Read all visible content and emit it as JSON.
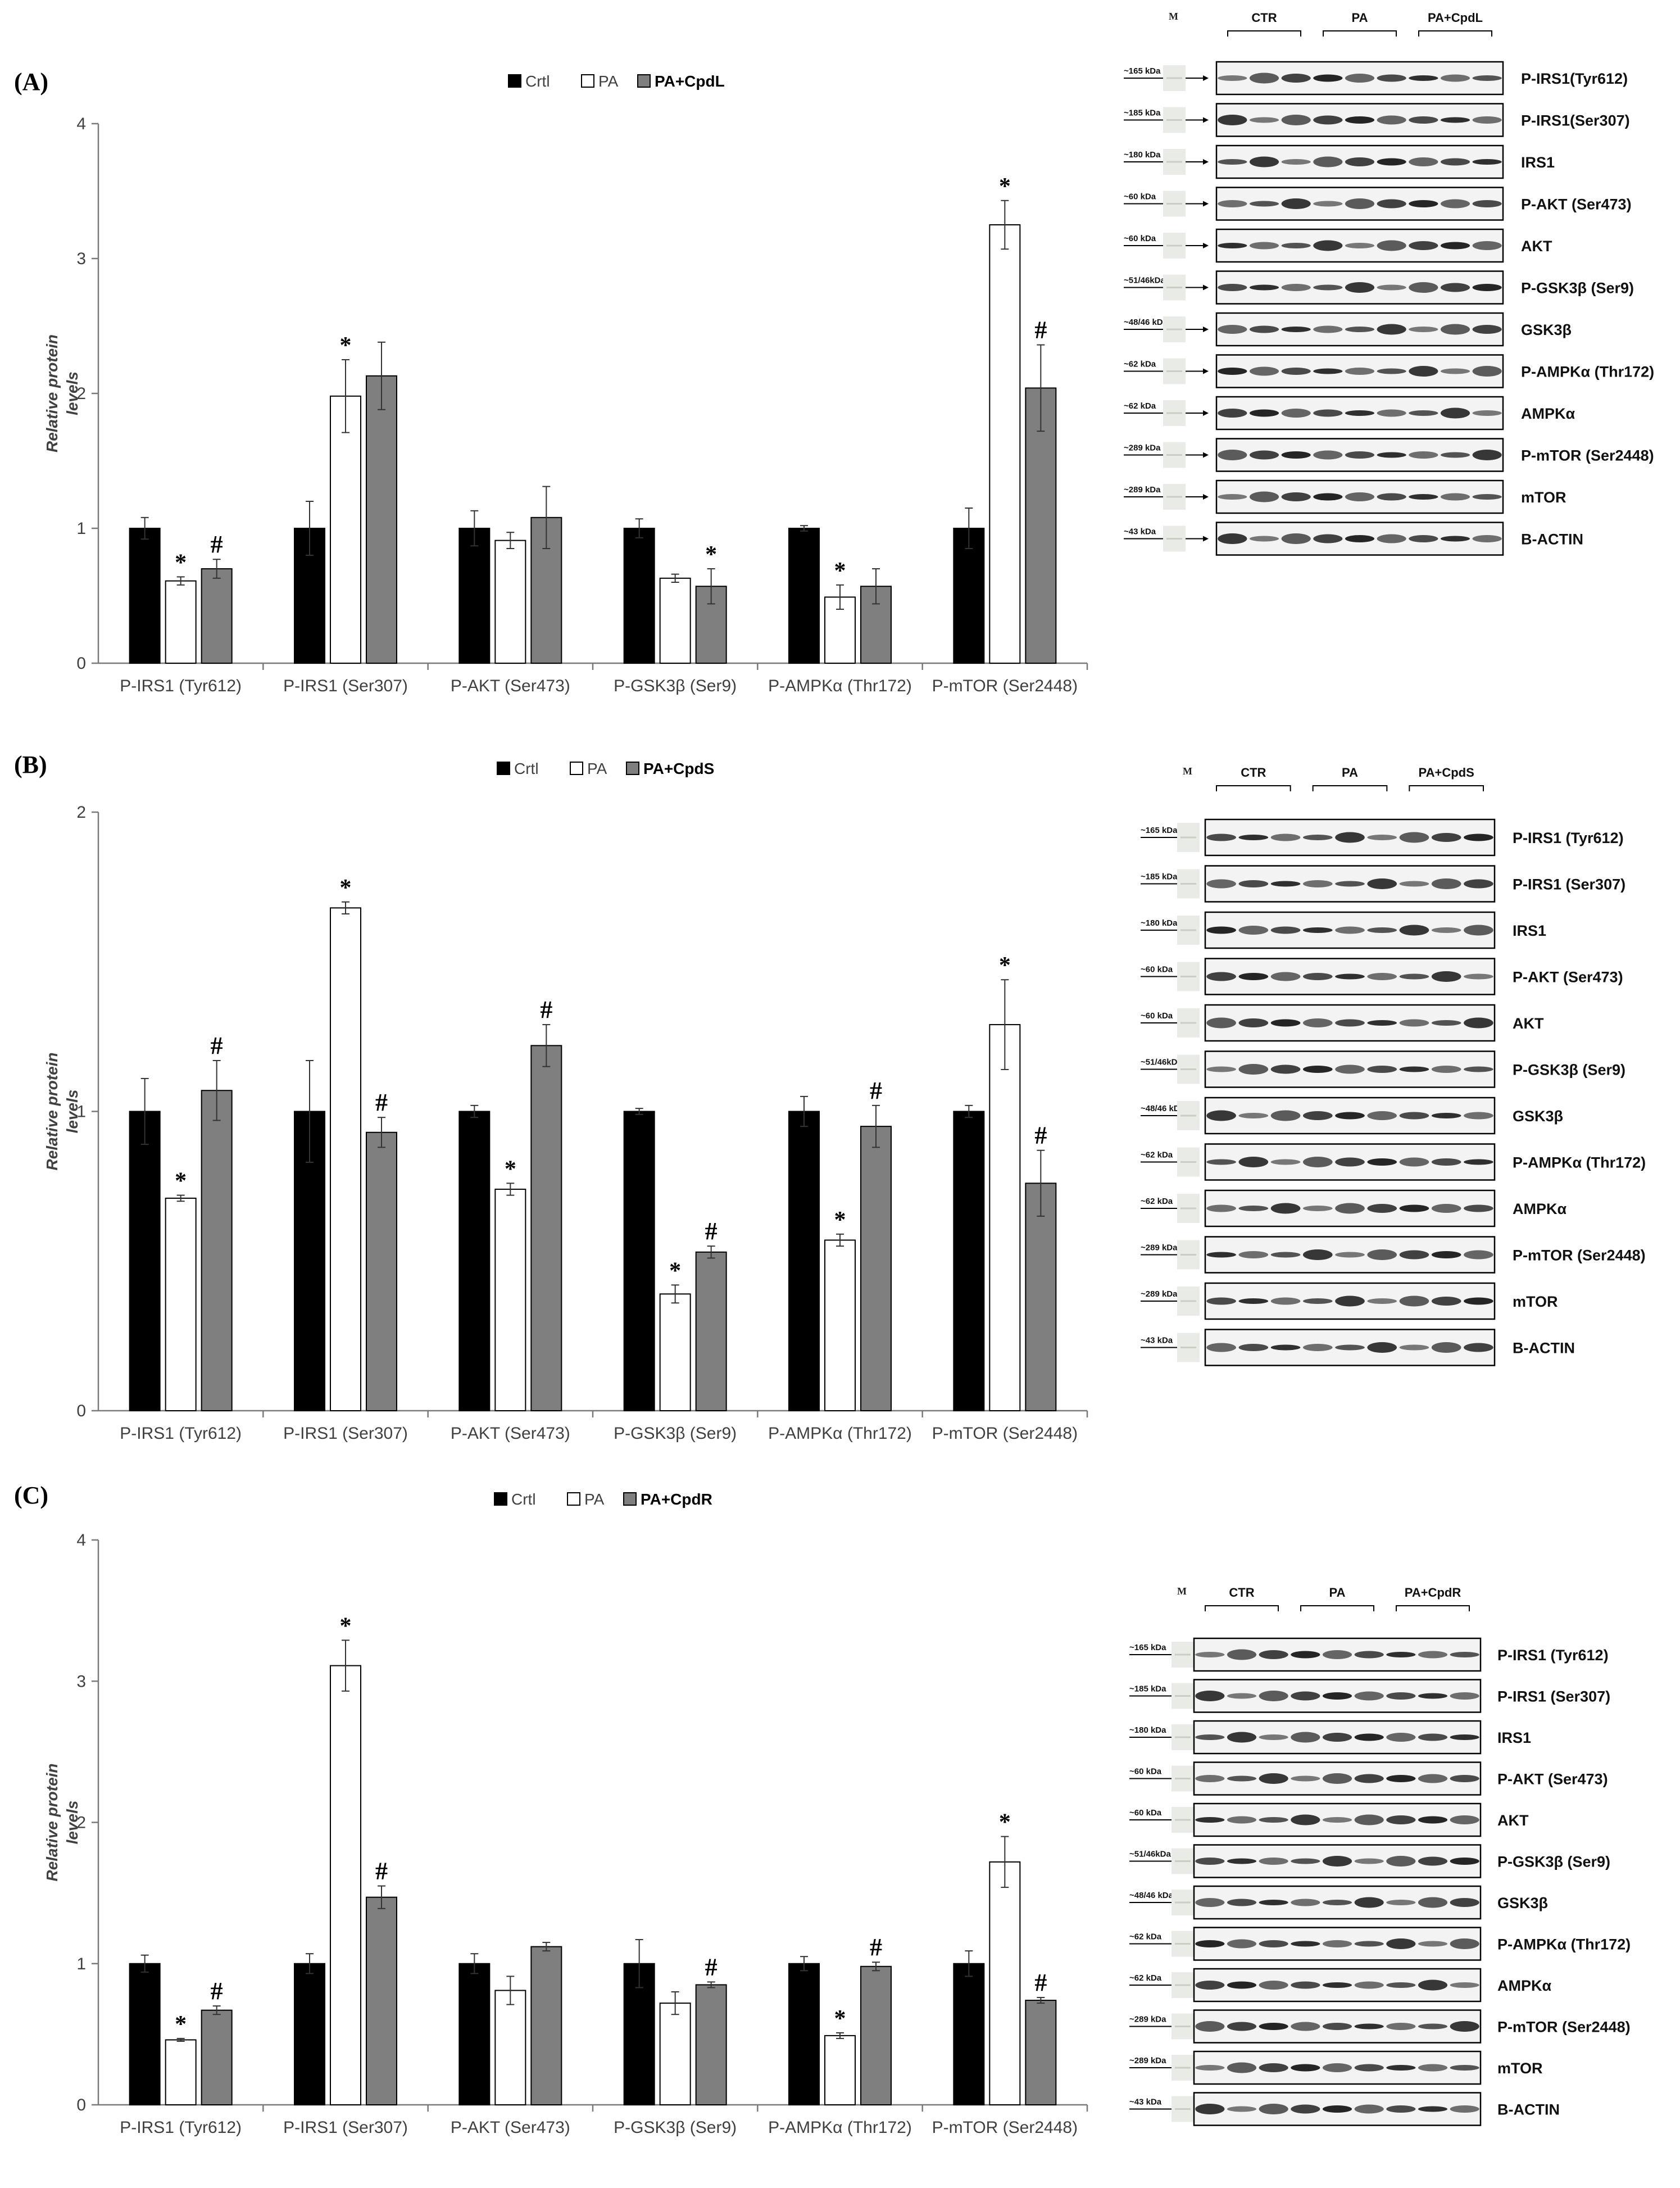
{
  "colors": {
    "crtl": "#000000",
    "pa": "#ffffff",
    "treat": "#7f7f7f",
    "axis": "#7a7a7a"
  },
  "chart_data": [
    {
      "type": "bar",
      "panel_label": "(A)",
      "legend": [
        "Crtl",
        "PA",
        "PA+CpdL"
      ],
      "ylabel": "Relative protein levels",
      "ylabel_lines": [
        "Relative protein",
        "levels"
      ],
      "ylim": [
        0,
        4
      ],
      "yticks": [
        "0",
        "1",
        "2",
        "3",
        "4"
      ],
      "categories": [
        "P-IRS1 (Tyr612)",
        "P-IRS1 (Ser307)",
        "P-AKT (Ser473)",
        "P-GSK3β (Ser9)",
        "P-AMPKα (Thr172)",
        "P-mTOR (Ser2448)"
      ],
      "series": [
        {
          "name": "Crtl",
          "values": [
            1.0,
            1.0,
            1.0,
            1.0,
            1.0,
            1.0
          ],
          "errors": [
            0.08,
            0.2,
            0.13,
            0.07,
            0.02,
            0.15
          ],
          "marks": [
            "",
            "",
            "",
            "",
            "",
            ""
          ]
        },
        {
          "name": "PA",
          "values": [
            0.61,
            1.98,
            0.91,
            0.63,
            0.49,
            3.25
          ],
          "errors": [
            0.03,
            0.27,
            0.06,
            0.03,
            0.09,
            0.18
          ],
          "marks": [
            "*",
            "*",
            "",
            "",
            "*",
            "*"
          ]
        },
        {
          "name": "PA+CpdL",
          "values": [
            0.7,
            2.13,
            1.08,
            0.57,
            0.57,
            2.04
          ],
          "errors": [
            0.07,
            0.25,
            0.23,
            0.13,
            0.13,
            0.32
          ],
          "marks": [
            "#",
            "",
            "",
            "*",
            "",
            "#"
          ]
        }
      ]
    },
    {
      "type": "bar",
      "panel_label": "(B)",
      "legend": [
        "Crtl",
        "PA",
        "PA+CpdS"
      ],
      "ylabel": "Relative protein levels",
      "ylabel_lines": [
        "Relative protein",
        "levels"
      ],
      "ylim": [
        0,
        2
      ],
      "yticks": [
        "0",
        "1",
        "2"
      ],
      "categories": [
        "P-IRS1 (Tyr612)",
        "P-IRS1 (Ser307)",
        "P-AKT (Ser473)",
        "P-GSK3β (Ser9)",
        "P-AMPKα (Thr172)",
        "P-mTOR (Ser2448)"
      ],
      "series": [
        {
          "name": "Crtl",
          "values": [
            1.0,
            1.0,
            1.0,
            1.0,
            1.0,
            1.0
          ],
          "errors": [
            0.11,
            0.17,
            0.02,
            0.01,
            0.05,
            0.02
          ],
          "marks": [
            "",
            "",
            "",
            "",
            "",
            ""
          ]
        },
        {
          "name": "PA",
          "values": [
            0.71,
            1.68,
            0.74,
            0.39,
            0.57,
            1.29
          ],
          "errors": [
            0.01,
            0.02,
            0.02,
            0.03,
            0.02,
            0.15
          ],
          "marks": [
            "*",
            "*",
            "*",
            "*",
            "*",
            "*"
          ]
        },
        {
          "name": "PA+CpdS",
          "values": [
            1.07,
            0.93,
            1.22,
            0.53,
            0.95,
            0.76
          ],
          "errors": [
            0.1,
            0.05,
            0.07,
            0.02,
            0.07,
            0.11
          ],
          "marks": [
            "#",
            "#",
            "#",
            "#",
            "#",
            "#"
          ]
        }
      ]
    },
    {
      "type": "bar",
      "panel_label": "(C)",
      "legend": [
        "Crtl",
        "PA",
        "PA+CpdR"
      ],
      "ylabel": "Relative protein levels",
      "ylabel_lines": [
        "Relative protein",
        "levels"
      ],
      "ylim": [
        0,
        4
      ],
      "yticks": [
        "0",
        "1",
        "2",
        "3",
        "4"
      ],
      "categories": [
        "P-IRS1 (Tyr612)",
        "P-IRS1 (Ser307)",
        "P-AKT (Ser473)",
        "P-GSK3β (Ser9)",
        "P-AMPKα (Thr172)",
        "P-mTOR (Ser2448)"
      ],
      "series": [
        {
          "name": "Crtl",
          "values": [
            1.0,
            1.0,
            1.0,
            1.0,
            1.0,
            1.0
          ],
          "errors": [
            0.06,
            0.07,
            0.07,
            0.17,
            0.05,
            0.09
          ],
          "marks": [
            "",
            "",
            "",
            "",
            "",
            ""
          ]
        },
        {
          "name": "PA",
          "values": [
            0.46,
            3.11,
            0.81,
            0.72,
            0.49,
            1.72
          ],
          "errors": [
            0.01,
            0.18,
            0.1,
            0.08,
            0.02,
            0.18
          ],
          "marks": [
            "*",
            "*",
            "",
            "",
            "*",
            "*"
          ]
        },
        {
          "name": "PA+CpdR",
          "values": [
            0.67,
            1.47,
            1.12,
            0.85,
            0.98,
            0.74
          ],
          "errors": [
            0.03,
            0.08,
            0.03,
            0.02,
            0.03,
            0.02
          ],
          "marks": [
            "#",
            "#",
            "",
            "#",
            "#",
            "#"
          ]
        }
      ]
    }
  ],
  "blots": [
    {
      "marker_label": "M",
      "groups": [
        "CTR",
        "PA",
        "PA+CpdL"
      ],
      "rows": [
        {
          "kda": "~165 kDa",
          "name": "P-IRS1(Tyr612)"
        },
        {
          "kda": "~185 kDa",
          "name": "P-IRS1(Ser307)"
        },
        {
          "kda": "~180 kDa",
          "name": "IRS1"
        },
        {
          "kda": "~60 kDa",
          "name": "P-AKT (Ser473)"
        },
        {
          "kda": "~60 kDa",
          "name": "AKT"
        },
        {
          "kda": "~51/46kDa",
          "name": "P-GSK3β (Ser9)"
        },
        {
          "kda": "~48/46 kDa",
          "name": "GSK3β"
        },
        {
          "kda": "~62 kDa",
          "name": "P-AMPKα (Thr172)"
        },
        {
          "kda": "~62 kDa",
          "name": "AMPKα"
        },
        {
          "kda": "~289 kDa",
          "name": "P-mTOR (Ser2448)"
        },
        {
          "kda": "~289 kDa",
          "name": "mTOR"
        },
        {
          "kda": "~43 kDa",
          "name": "B-ACTIN"
        }
      ]
    },
    {
      "marker_label": "M",
      "groups": [
        "CTR",
        "PA",
        "PA+CpdS"
      ],
      "rows": [
        {
          "kda": "~165 kDa",
          "name": "P-IRS1 (Tyr612)"
        },
        {
          "kda": "~185 kDa",
          "name": "P-IRS1 (Ser307)"
        },
        {
          "kda": "~180 kDa",
          "name": "IRS1"
        },
        {
          "kda": "~60 kDa",
          "name": "P-AKT (Ser473)"
        },
        {
          "kda": "~60 kDa",
          "name": "AKT"
        },
        {
          "kda": "~51/46kDa",
          "name": "P-GSK3β (Ser9)"
        },
        {
          "kda": "~48/46 kDa",
          "name": "GSK3β"
        },
        {
          "kda": "~62 kDa",
          "name": "P-AMPKα (Thr172)"
        },
        {
          "kda": "~62 kDa",
          "name": "AMPKα"
        },
        {
          "kda": "~289 kDa",
          "name": "P-mTOR (Ser2448)"
        },
        {
          "kda": "~289 kDa",
          "name": "mTOR"
        },
        {
          "kda": "~43 kDa",
          "name": "B-ACTIN"
        }
      ]
    },
    {
      "marker_label": "M",
      "groups": [
        "CTR",
        "PA",
        "PA+CpdR"
      ],
      "rows": [
        {
          "kda": "~165 kDa",
          "name": "P-IRS1 (Tyr612)"
        },
        {
          "kda": "~185 kDa",
          "name": "P-IRS1 (Ser307)"
        },
        {
          "kda": "~180 kDa",
          "name": "IRS1"
        },
        {
          "kda": "~60 kDa",
          "name": "P-AKT (Ser473)"
        },
        {
          "kda": "~60 kDa",
          "name": "AKT"
        },
        {
          "kda": "~51/46kDa",
          "name": "P-GSK3β (Ser9)"
        },
        {
          "kda": "~48/46 kDa",
          "name": "GSK3β"
        },
        {
          "kda": "~62 kDa",
          "name": "P-AMPKα (Thr172)"
        },
        {
          "kda": "~62 kDa",
          "name": "AMPKα"
        },
        {
          "kda": "~289 kDa",
          "name": "P-mTOR (Ser2448)"
        },
        {
          "kda": "~289 kDa",
          "name": "mTOR"
        },
        {
          "kda": "~43 kDa",
          "name": "B-ACTIN"
        }
      ]
    }
  ]
}
